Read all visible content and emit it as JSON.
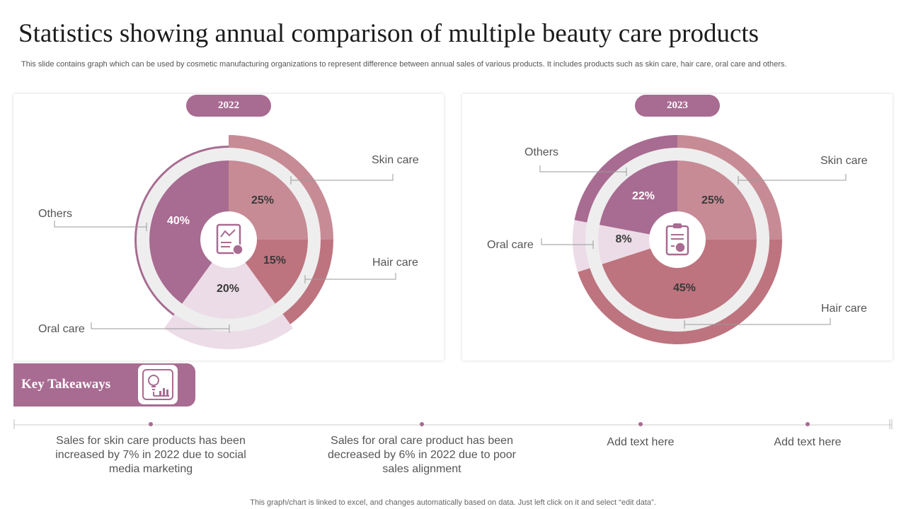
{
  "title": "Statistics showing annual comparison of multiple beauty care products",
  "subtitle": "This slide contains graph which can be used by cosmetic manufacturing organizations to represent difference between annual sales of various products. It includes products such as skin care, hair care, oral care and others.",
  "colors": {
    "accent": "#a86b91",
    "skin_care": "#c78b95",
    "hair_care": "#bd747f",
    "oral_care": "#ecdce7",
    "others": "#a86b91"
  },
  "chart_data": [
    {
      "type": "pie",
      "title": "2022",
      "categories": [
        "Skin care",
        "Hair care",
        "Oral care",
        "Others"
      ],
      "values": [
        25,
        15,
        20,
        40
      ],
      "value_labels": [
        "25%",
        "15%",
        "20%",
        "40%"
      ],
      "center_icon": "document-chart-icon"
    },
    {
      "type": "pie",
      "title": "2023",
      "categories": [
        "Skin care",
        "Hair care",
        "Oral care",
        "Others"
      ],
      "values": [
        25,
        45,
        8,
        22
      ],
      "value_labels": [
        "25%",
        "45%",
        "8%",
        "22%"
      ],
      "center_icon": "clipboard-chart-icon"
    }
  ],
  "takeaways": {
    "title": "Key Takeaways",
    "icon": "lightbulb-chart-icon",
    "items": [
      "Sales for skin care products has been increased by 7% in 2022  due to social media marketing",
      "Sales for oral care product has been decreased by 6% in 2022 due to poor sales alignment",
      "Add text here",
      "Add text here"
    ]
  },
  "footer": "This graph/chart is linked to excel,  and changes automatically based on data. Just left click on it and select “edit data”."
}
